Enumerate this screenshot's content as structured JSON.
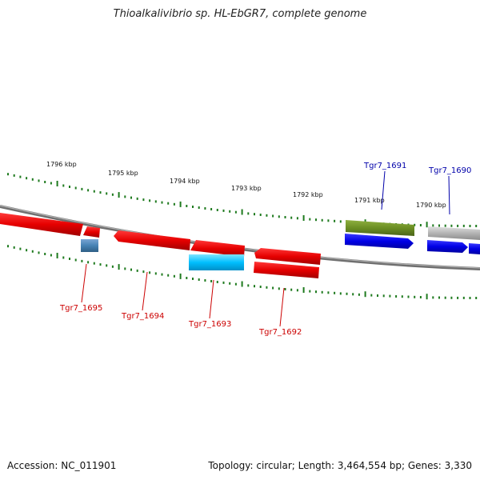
{
  "title": "Thioalkalivibrio sp. HL-EbGR7, complete genome",
  "footer": {
    "accession": "Accession: NC_011901",
    "topology": "Topology: circular; Length: 3,464,554 bp; Genes: 3,330"
  },
  "colors": {
    "backbone": "#8a8a8a",
    "tick": "#1e7a1e",
    "red": "#e60000",
    "blue": "#0000e6",
    "olive": "#6b8e23",
    "cyan": "#00bfff",
    "steel": "#4682b4",
    "gray": "#b4b4b4",
    "red_label": "#cc0000",
    "blue_label": "#0000aa"
  },
  "scale_labels": [
    "1796 kbp",
    "1795 kbp",
    "1794 kbp",
    "1793 kbp",
    "1792 kbp",
    "1791 kbp",
    "1790 kbp"
  ],
  "gene_labels": [
    {
      "name": "Tgr7_1695",
      "color": "red"
    },
    {
      "name": "Tgr7_1694",
      "color": "red"
    },
    {
      "name": "Tgr7_1693",
      "color": "red"
    },
    {
      "name": "Tgr7_1692",
      "color": "red"
    },
    {
      "name": "Tgr7_1691",
      "color": "blue"
    },
    {
      "name": "Tgr7_1690",
      "color": "blue"
    }
  ]
}
